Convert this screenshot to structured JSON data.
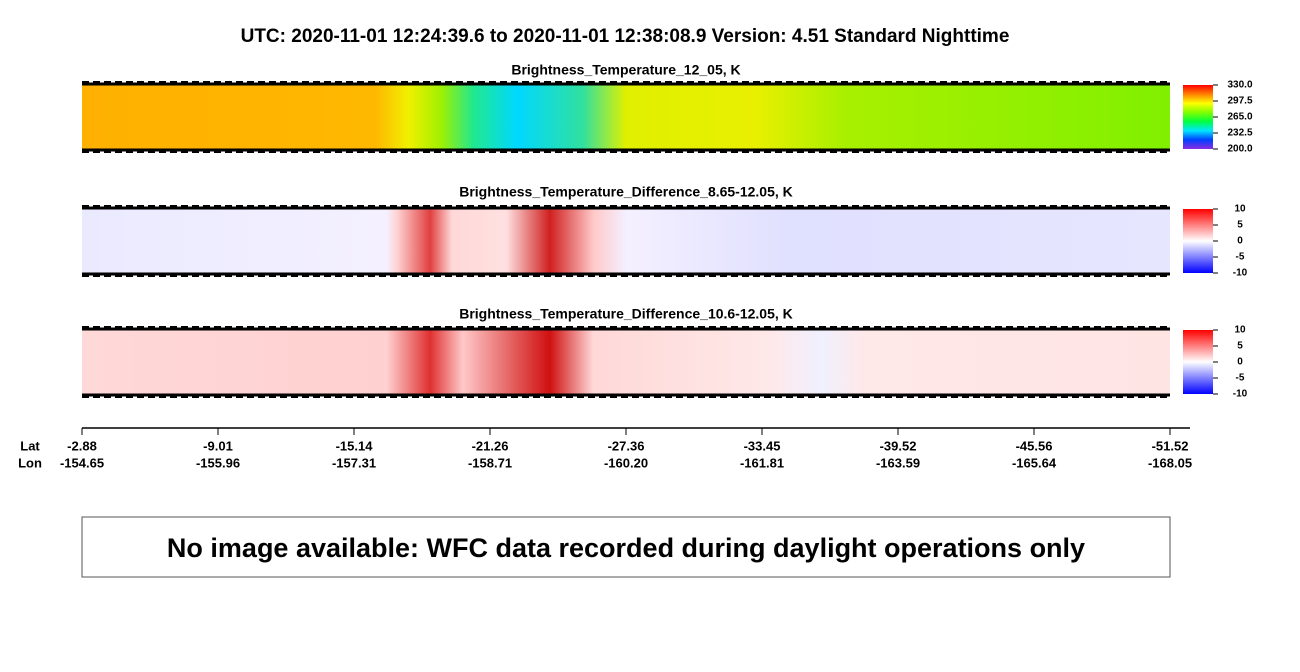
{
  "header": {
    "title": "UTC:  2020-11-01   12:24:39.6  to  2020-11-01   12:38:08.9    Version: 4.51  Standard Nighttime"
  },
  "chart_data": [
    {
      "type": "heatmap",
      "title": "Brightness_Temperature_12_05, K",
      "clim": [
        200,
        330
      ],
      "cticks": [
        {
          "value": 330,
          "label": "330.0"
        },
        {
          "value": 297.5,
          "label": "297.5"
        },
        {
          "value": 265,
          "label": "265.0"
        },
        {
          "value": 232.5,
          "label": "232.5"
        },
        {
          "value": 200,
          "label": "200.0"
        }
      ],
      "colorscale": [
        "#8a2be2",
        "#0040ff",
        "#00e5ff",
        "#00ff40",
        "#80ff00",
        "#ffff00",
        "#ff8000",
        "#ff0000"
      ]
    },
    {
      "type": "heatmap",
      "title": "Brightness_Temperature_Difference_8.65-12.05, K",
      "clim": [
        -10,
        10
      ],
      "cticks": [
        10,
        5,
        0,
        -5,
        -10
      ],
      "colorscale": [
        "#0000ff",
        "#ffffff",
        "#ff0000"
      ]
    },
    {
      "type": "heatmap",
      "title": "Brightness_Temperature_Difference_10.6-12.05, K",
      "clim": [
        -10,
        10
      ],
      "cticks": [
        10,
        5,
        0,
        -5,
        -10
      ],
      "colorscale": [
        "#0000ff",
        "#ffffff",
        "#ff0000"
      ]
    }
  ],
  "x_axis": {
    "lat_label": "Lat",
    "lon_label": "Lon",
    "lat": [
      "-2.88",
      "-9.01",
      "-15.14",
      "-21.26",
      "-27.36",
      "-33.45",
      "-39.52",
      "-45.56",
      "-51.52"
    ],
    "lon": [
      "-154.65",
      "-155.96",
      "-157.31",
      "-158.71",
      "-160.20",
      "-161.81",
      "-163.59",
      "-165.64",
      "-168.05"
    ]
  },
  "message": "No image available: WFC data recorded during daylight operations only"
}
